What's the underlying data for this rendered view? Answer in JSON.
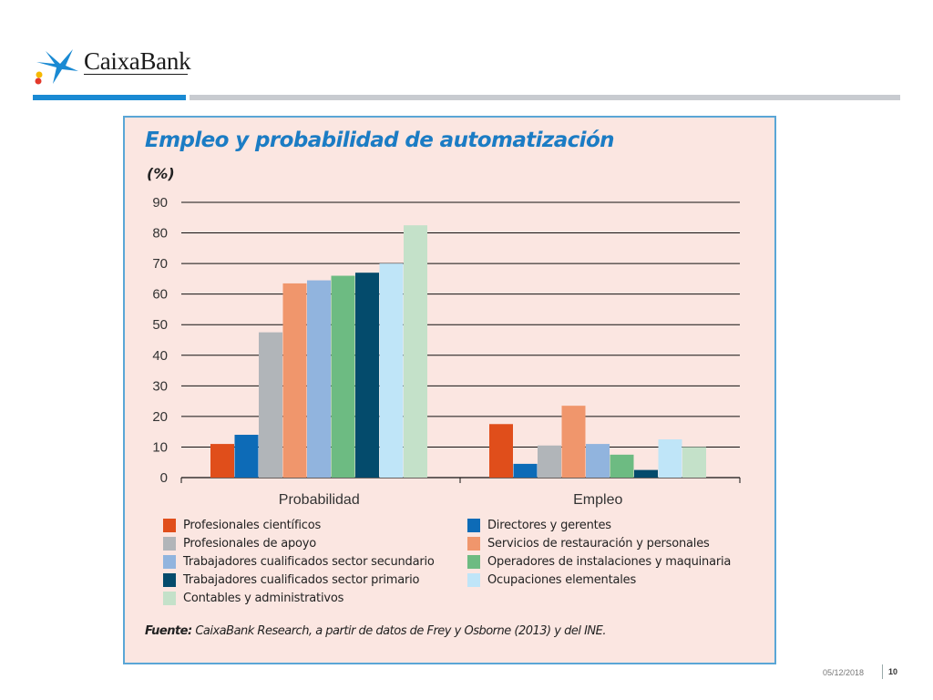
{
  "header": {
    "brand": "CaixaBank",
    "colors": {
      "accent": "#1a8ad3",
      "divider": "#c8cbd0",
      "star": "#1a8ad3",
      "star_dot_red": "#e3392b",
      "star_dot_yellow": "#f6b800"
    }
  },
  "chart_data": {
    "type": "bar",
    "title": "Empleo y probabilidad de automatización",
    "ylabel": "(%)",
    "xlabel": "",
    "ylim": [
      0,
      90
    ],
    "yticks": [
      0,
      10,
      20,
      30,
      40,
      50,
      60,
      70,
      80,
      90
    ],
    "grid": true,
    "categories": [
      "Probabilidad",
      "Empleo"
    ],
    "series": [
      {
        "name": "Profesionales científicos",
        "color": "#e04e1b",
        "values": [
          11,
          17.5
        ]
      },
      {
        "name": "Directores y gerentes",
        "color": "#0d6bb7",
        "values": [
          14,
          4.5
        ]
      },
      {
        "name": "Profesionales de apoyo",
        "color": "#b1b5b9",
        "values": [
          47.5,
          10.5
        ]
      },
      {
        "name": "Servicios de restauración y personales",
        "color": "#f0966c",
        "values": [
          63.5,
          23.5
        ]
      },
      {
        "name": "Trabajadores cualificados sector secundario",
        "color": "#91b4de",
        "values": [
          64.5,
          11
        ]
      },
      {
        "name": "Operadores de instalaciones y maquinaria",
        "color": "#6dbb82",
        "values": [
          66,
          7.5
        ]
      },
      {
        "name": "Trabajadores cualificados sector primario",
        "color": "#044b6c",
        "values": [
          67,
          2.5
        ]
      },
      {
        "name": "Ocupaciones elementales",
        "color": "#bfe5f8",
        "values": [
          70,
          12.5
        ]
      },
      {
        "name": "Contables y administrativos",
        "color": "#c4e1c9",
        "values": [
          82.5,
          10
        ]
      }
    ],
    "legend_order": [
      0,
      1,
      2,
      3,
      4,
      5,
      6,
      7,
      8
    ],
    "source_label": "Fuente:",
    "source_text": " CaixaBank Research, a partir de datos de Frey y Osborne (2013) y del INE."
  },
  "footer": {
    "date": "05/12/2018",
    "page": "10"
  }
}
